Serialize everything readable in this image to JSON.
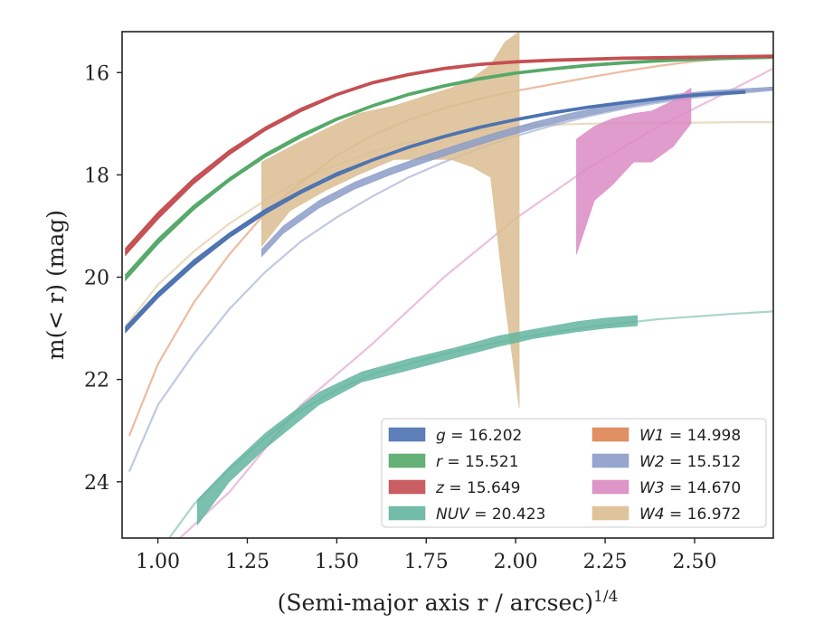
{
  "chart_data": {
    "type": "line",
    "xlabel": "(Semi-major axis r / arcsec)^{1/4}",
    "ylabel": "m(< r) (mag)",
    "xlim": [
      0.9,
      2.72
    ],
    "ylim": [
      25.1,
      15.2
    ],
    "y_inverted": true,
    "grid": false,
    "legend_position": "lower-right",
    "xticks": [
      "1.00",
      "1.25",
      "1.50",
      "1.75",
      "2.00",
      "2.25",
      "2.50"
    ],
    "xtick_values": [
      1.0,
      1.25,
      1.5,
      1.75,
      2.0,
      2.25,
      2.5
    ],
    "yticks": [
      "16",
      "18",
      "20",
      "22",
      "24"
    ],
    "ytick_values": [
      16,
      18,
      20,
      22,
      24
    ],
    "series": [
      {
        "key": "g",
        "legend_label": "g = 16.202",
        "color": "#4c72b0",
        "model": {
          "x": [
            0.91,
            1.0,
            1.1,
            1.2,
            1.3,
            1.4,
            1.5,
            1.6,
            1.7,
            1.8,
            1.9,
            2.0,
            2.1,
            2.2,
            2.3,
            2.4,
            2.5,
            2.64
          ],
          "y": [
            21.02,
            20.35,
            19.72,
            19.18,
            18.72,
            18.33,
            17.99,
            17.71,
            17.46,
            17.25,
            17.07,
            16.92,
            16.79,
            16.68,
            16.59,
            16.51,
            16.44,
            16.38
          ]
        },
        "band": {
          "x": [
            0.91,
            1.0,
            1.1,
            1.2,
            1.3,
            1.4,
            1.5,
            1.6,
            1.7,
            1.8,
            1.9,
            2.0,
            2.1,
            2.2,
            2.3,
            2.4,
            2.5,
            2.64
          ],
          "y_low": [
            21.07,
            20.4,
            19.77,
            19.22,
            18.76,
            18.36,
            18.02,
            17.73,
            17.48,
            17.27,
            17.09,
            16.94,
            16.81,
            16.7,
            16.61,
            16.53,
            16.46,
            16.4
          ],
          "y_high": [
            20.97,
            20.3,
            19.67,
            19.14,
            18.68,
            18.3,
            17.96,
            17.69,
            17.44,
            17.23,
            17.05,
            16.9,
            16.77,
            16.66,
            16.57,
            16.49,
            16.42,
            16.36
          ]
        }
      },
      {
        "key": "r",
        "legend_label": "r = 15.521",
        "color": "#55a868",
        "model": {
          "x": [
            0.91,
            1.0,
            1.1,
            1.2,
            1.3,
            1.4,
            1.5,
            1.6,
            1.7,
            1.8,
            1.9,
            2.0,
            2.1,
            2.2,
            2.3,
            2.4,
            2.5,
            2.6,
            2.72
          ],
          "y": [
            20.0,
            19.3,
            18.64,
            18.09,
            17.62,
            17.24,
            16.91,
            16.65,
            16.43,
            16.26,
            16.12,
            16.01,
            15.93,
            15.86,
            15.81,
            15.77,
            15.74,
            15.72,
            15.7
          ]
        },
        "band": {
          "x": [
            0.91,
            1.0,
            1.1,
            1.2,
            1.3,
            1.4,
            1.5,
            1.6,
            1.7,
            1.8,
            1.9,
            2.0,
            2.1,
            2.2,
            2.3,
            2.4,
            2.5,
            2.6,
            2.72
          ],
          "y_low": [
            20.05,
            19.35,
            18.68,
            18.12,
            17.65,
            17.27,
            16.93,
            16.67,
            16.45,
            16.28,
            16.14,
            16.03,
            15.95,
            15.88,
            15.83,
            15.79,
            15.76,
            15.74,
            15.72
          ],
          "y_high": [
            19.95,
            19.25,
            18.6,
            18.06,
            17.59,
            17.21,
            16.89,
            16.63,
            16.41,
            16.24,
            16.1,
            15.99,
            15.91,
            15.84,
            15.79,
            15.75,
            15.72,
            15.7,
            15.68
          ]
        }
      },
      {
        "key": "z",
        "legend_label": "z = 15.649",
        "color": "#c44e52",
        "model": {
          "x": [
            0.91,
            1.0,
            1.1,
            1.2,
            1.3,
            1.4,
            1.5,
            1.6,
            1.7,
            1.8,
            1.9,
            2.0,
            2.1,
            2.2,
            2.3,
            2.4,
            2.5,
            2.6,
            2.72
          ],
          "y": [
            19.5,
            18.8,
            18.12,
            17.56,
            17.1,
            16.73,
            16.43,
            16.2,
            16.04,
            15.92,
            15.84,
            15.79,
            15.76,
            15.74,
            15.72,
            15.71,
            15.7,
            15.69,
            15.68
          ]
        },
        "band": {
          "x": [
            0.91,
            1.0,
            1.1,
            1.2,
            1.3,
            1.4,
            1.5,
            1.6,
            1.7,
            1.8,
            1.9,
            2.0,
            2.1,
            2.2,
            2.3,
            2.4,
            2.5,
            2.6,
            2.72
          ],
          "y_low": [
            19.56,
            18.86,
            18.17,
            17.6,
            17.13,
            16.76,
            16.45,
            16.22,
            16.06,
            15.94,
            15.86,
            15.81,
            15.78,
            15.76,
            15.74,
            15.73,
            15.72,
            15.71,
            15.7
          ],
          "y_high": [
            19.44,
            18.74,
            18.07,
            17.52,
            17.07,
            16.7,
            16.41,
            16.18,
            16.02,
            15.9,
            15.82,
            15.77,
            15.74,
            15.72,
            15.7,
            15.69,
            15.68,
            15.67,
            15.66
          ]
        }
      },
      {
        "key": "NUV",
        "legend_label": "NUV = 20.423",
        "color": "#64b5a0",
        "model": {
          "x": [
            1.0,
            1.1,
            1.2,
            1.3,
            1.4,
            1.5,
            1.6,
            1.7,
            1.8,
            1.9,
            2.0,
            2.1,
            2.2,
            2.3,
            2.4,
            2.5,
            2.6,
            2.72
          ],
          "y": [
            25.4,
            24.45,
            23.75,
            23.15,
            22.6,
            22.2,
            21.9,
            21.7,
            21.5,
            21.35,
            21.2,
            21.08,
            20.98,
            20.9,
            20.82,
            20.77,
            20.72,
            20.67
          ]
        },
        "band": {
          "x": [
            1.11,
            1.2,
            1.3,
            1.45,
            1.57,
            1.7,
            1.83,
            1.95,
            2.05,
            2.17,
            2.25,
            2.34
          ],
          "y_low": [
            24.85,
            24.0,
            23.35,
            22.5,
            22.05,
            21.82,
            21.58,
            21.36,
            21.2,
            21.07,
            21.0,
            20.95
          ],
          "y_high": [
            24.35,
            23.7,
            23.05,
            22.25,
            21.85,
            21.6,
            21.38,
            21.15,
            21.02,
            20.87,
            20.8,
            20.75
          ]
        }
      },
      {
        "key": "W1",
        "legend_label": "W1 = 14.998",
        "color": "#dd8452",
        "model": {
          "x": [
            0.92,
            1.0,
            1.1,
            1.2,
            1.3,
            1.4,
            1.5,
            1.6,
            1.7,
            1.8,
            1.9,
            2.0,
            2.1,
            2.2,
            2.3,
            2.4,
            2.5,
            2.6,
            2.72
          ],
          "y": [
            23.1,
            21.7,
            20.5,
            19.55,
            18.75,
            18.15,
            17.62,
            17.23,
            16.93,
            16.7,
            16.51,
            16.36,
            16.23,
            16.1,
            15.98,
            15.87,
            15.78,
            15.72,
            15.68
          ]
        },
        "band": null
      },
      {
        "key": "W2",
        "legend_label": "W2 = 15.512",
        "color": "#8c9cc8",
        "model": {
          "x": [
            0.92,
            1.0,
            1.1,
            1.2,
            1.3,
            1.4,
            1.5,
            1.6,
            1.7,
            1.8,
            1.9,
            2.0,
            2.1,
            2.2,
            2.3,
            2.4,
            2.5,
            2.6,
            2.72
          ],
          "y": [
            23.8,
            22.5,
            21.5,
            20.62,
            19.9,
            19.3,
            18.83,
            18.42,
            18.05,
            17.75,
            17.48,
            17.24,
            17.04,
            16.86,
            16.71,
            16.59,
            16.49,
            16.42,
            16.34
          ]
        },
        "band": {
          "x": [
            1.29,
            1.35,
            1.45,
            1.55,
            1.65,
            1.75,
            1.85,
            1.95,
            2.05,
            2.15,
            2.25,
            2.35,
            2.45,
            2.55,
            2.72
          ],
          "y_low": [
            19.6,
            19.15,
            18.65,
            18.28,
            18.0,
            17.75,
            17.52,
            17.3,
            17.1,
            16.92,
            16.77,
            16.63,
            16.52,
            16.43,
            16.34
          ],
          "y_high": [
            19.45,
            19.0,
            18.5,
            18.14,
            17.86,
            17.61,
            17.38,
            17.16,
            16.97,
            16.8,
            16.65,
            16.52,
            16.42,
            16.35,
            16.28
          ]
        }
      },
      {
        "key": "W3",
        "legend_label": "W3 = 14.670",
        "color": "#da8bc3",
        "model": {
          "x": [
            1.0,
            1.2,
            1.4,
            1.6,
            1.8,
            2.0,
            2.2,
            2.4,
            2.6,
            2.72
          ],
          "y": [
            25.5,
            24.2,
            22.5,
            21.3,
            20.0,
            18.85,
            17.88,
            17.05,
            16.35,
            15.92
          ]
        },
        "band": {
          "x": [
            2.17,
            2.22,
            2.27,
            2.33,
            2.38,
            2.44,
            2.49
          ],
          "y_low": [
            19.55,
            18.5,
            18.2,
            17.75,
            17.75,
            17.45,
            17.0
          ],
          "y_high": [
            17.3,
            17.05,
            16.9,
            16.8,
            16.75,
            16.55,
            16.3
          ]
        }
      },
      {
        "key": "W4",
        "legend_label": "W4 = 16.972",
        "color": "#dbbd92",
        "model": {
          "x": [
            0.91,
            1.0,
            1.1,
            1.2,
            1.3,
            1.4,
            1.5,
            1.6,
            1.7,
            1.8,
            1.9,
            2.0,
            2.1,
            2.2,
            2.3,
            2.4,
            2.5,
            2.6,
            2.72
          ],
          "y": [
            20.95,
            20.15,
            19.5,
            18.95,
            18.5,
            18.1,
            17.8,
            17.55,
            17.37,
            17.23,
            17.13,
            17.06,
            17.02,
            17.0,
            16.99,
            16.98,
            16.98,
            16.97,
            16.97
          ]
        },
        "band": {
          "x": [
            1.29,
            1.37,
            1.47,
            1.56,
            1.66,
            1.75,
            1.82,
            1.88,
            1.93,
            1.97,
            2.01
          ],
          "y_low": [
            19.4,
            18.7,
            18.3,
            18.0,
            17.7,
            17.7,
            17.7,
            17.85,
            18.05,
            20.5,
            22.55
          ],
          "y_high": [
            17.75,
            17.45,
            17.1,
            16.8,
            16.65,
            16.45,
            16.3,
            16.1,
            15.85,
            15.4,
            15.2
          ]
        }
      }
    ]
  }
}
